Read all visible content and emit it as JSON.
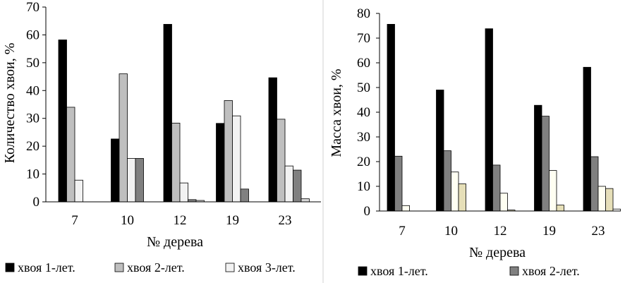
{
  "chart_data": [
    {
      "type": "bar",
      "xlabel": "№ дерева",
      "ylabel": "Количество хвои, %",
      "ylim": [
        0,
        70
      ],
      "yticks": [
        0,
        10,
        20,
        30,
        40,
        50,
        60,
        70
      ],
      "grid": false,
      "legend_position": "bottom",
      "categories": [
        "7",
        "10",
        "12",
        "19",
        "23"
      ],
      "series": [
        {
          "name": "хвоя 1-лет.",
          "color": "#000000",
          "values": [
            58.2,
            22.6,
            63.8,
            28.2,
            44.6
          ]
        },
        {
          "name": "хвоя 2-лет.",
          "color": "#bfbfbf",
          "values": [
            34.0,
            46.0,
            28.3,
            36.4,
            29.7
          ]
        },
        {
          "name": "хвоя 3-лет.",
          "color": "#f2f2f2",
          "values": [
            7.8,
            15.6,
            6.8,
            30.9,
            12.9
          ]
        },
        {
          "name": "",
          "color": "#808080",
          "values": [
            0,
            15.6,
            0.8,
            4.6,
            11.4
          ]
        },
        {
          "name": "",
          "color": "#d9d9d9",
          "values": [
            0,
            0,
            0.5,
            0,
            1.1
          ]
        }
      ]
    },
    {
      "type": "bar",
      "xlabel": "№ дерева",
      "ylabel": "Масса хвои, %",
      "ylim": [
        0,
        80
      ],
      "yticks": [
        0,
        10,
        20,
        30,
        40,
        50,
        60,
        70,
        80
      ],
      "grid": false,
      "legend_position": "bottom",
      "categories": [
        "7",
        "10",
        "12",
        "19",
        "23"
      ],
      "series": [
        {
          "name": "хвоя 1-лет.",
          "color": "#000000",
          "values": [
            75.6,
            49.0,
            73.8,
            42.8,
            58.2
          ]
        },
        {
          "name": "хвоя 2-лет.",
          "color": "#808080",
          "values": [
            22.2,
            24.4,
            18.6,
            38.4,
            22.0
          ]
        },
        {
          "name": "",
          "color": "#fffff2",
          "values": [
            2.2,
            15.8,
            7.2,
            16.4,
            10.0
          ]
        },
        {
          "name": "",
          "color": "#e6dfb8",
          "values": [
            0,
            11.0,
            0.4,
            2.4,
            9.1
          ]
        },
        {
          "name": "",
          "color": "#ffffff",
          "values": [
            0,
            0,
            0,
            0,
            0.8
          ]
        }
      ]
    }
  ]
}
